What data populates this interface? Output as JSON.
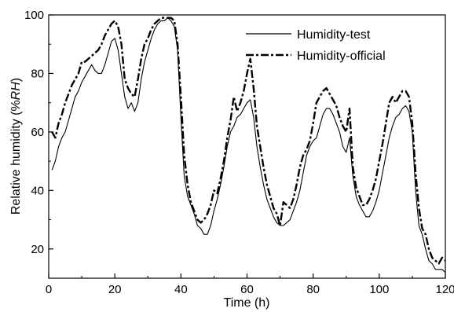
{
  "chart_data": {
    "type": "line",
    "xlabel": "Time (h)",
    "ylabel_prefix": "Relative humidity (%",
    "ylabel_unit": "RH",
    "ylabel_suffix": ")",
    "xlim": [
      0,
      120
    ],
    "ylim": [
      10,
      100
    ],
    "xticks": [
      0,
      20,
      40,
      60,
      80,
      100,
      120
    ],
    "yticks": [
      20,
      40,
      60,
      80,
      100
    ],
    "grid": false,
    "legend_position": "top-right",
    "series": [
      {
        "name": "Humidity-test",
        "style": "solid",
        "color": "#000000",
        "x": [
          1,
          2,
          3,
          4,
          5,
          6,
          7,
          8,
          9,
          10,
          11,
          12,
          13,
          14,
          15,
          16,
          17,
          18,
          19,
          20,
          21,
          22,
          23,
          24,
          25,
          26,
          27,
          28,
          29,
          30,
          31,
          32,
          33,
          34,
          35,
          36,
          37,
          38,
          39,
          40,
          41,
          42,
          43,
          44,
          45,
          46,
          47,
          48,
          49,
          50,
          51,
          52,
          53,
          54,
          55,
          56,
          57,
          58,
          59,
          60,
          61,
          62,
          63,
          64,
          65,
          66,
          67,
          68,
          69,
          70,
          71,
          72,
          73,
          74,
          75,
          76,
          77,
          78,
          79,
          80,
          81,
          82,
          83,
          84,
          85,
          86,
          87,
          88,
          89,
          90,
          91,
          92,
          93,
          94,
          95,
          96,
          97,
          98,
          99,
          100,
          101,
          102,
          103,
          104,
          105,
          106,
          107,
          108,
          109,
          110,
          111,
          112,
          113,
          114,
          115,
          116,
          117,
          118,
          119,
          120
        ],
        "y": [
          47,
          50,
          55,
          58,
          60,
          64,
          68,
          72,
          74,
          77,
          79,
          81,
          83,
          81,
          80,
          80,
          83,
          87,
          91,
          92,
          88,
          80,
          72,
          68,
          70,
          67,
          70,
          78,
          84,
          88,
          92,
          95,
          97,
          98,
          98,
          99,
          98,
          96,
          88,
          65,
          45,
          38,
          35,
          32,
          28,
          27,
          25,
          25,
          28,
          33,
          37,
          42,
          48,
          55,
          60,
          62,
          65,
          66,
          68,
          70,
          71,
          65,
          55,
          48,
          42,
          37,
          34,
          31,
          29,
          28,
          28,
          29,
          30,
          33,
          36,
          40,
          46,
          52,
          55,
          57,
          58,
          62,
          66,
          68,
          68,
          66,
          63,
          60,
          55,
          53,
          58,
          45,
          38,
          35,
          33,
          31,
          31,
          33,
          36,
          40,
          46,
          52,
          58,
          62,
          65,
          66,
          68,
          69,
          67,
          60,
          40,
          28,
          25,
          20,
          16,
          15,
          13,
          13,
          13,
          12
        ]
      },
      {
        "name": "Humidity-official",
        "style": "dash-dot",
        "color": "#000000",
        "x": [
          1,
          2,
          3,
          4,
          5,
          6,
          7,
          8,
          9,
          10,
          11,
          12,
          13,
          14,
          15,
          16,
          17,
          18,
          19,
          20,
          21,
          22,
          23,
          24,
          25,
          26,
          27,
          28,
          29,
          30,
          31,
          32,
          33,
          34,
          35,
          36,
          37,
          38,
          39,
          40,
          41,
          42,
          43,
          44,
          45,
          46,
          47,
          48,
          49,
          50,
          51,
          52,
          53,
          54,
          55,
          56,
          57,
          58,
          59,
          60,
          61,
          62,
          63,
          64,
          65,
          66,
          67,
          68,
          69,
          70,
          71,
          72,
          73,
          74,
          75,
          76,
          77,
          78,
          79,
          80,
          81,
          82,
          83,
          84,
          85,
          86,
          87,
          88,
          89,
          90,
          91,
          92,
          93,
          94,
          95,
          96,
          97,
          98,
          99,
          100,
          101,
          102,
          103,
          104,
          105,
          106,
          107,
          108,
          109,
          110,
          111,
          112,
          113,
          114,
          115,
          116,
          117,
          118,
          119,
          120
        ],
        "y": [
          60,
          58,
          63,
          66,
          70,
          73,
          76,
          78,
          80,
          84,
          84,
          85,
          86,
          87,
          88,
          90,
          93,
          95,
          97,
          98,
          96,
          90,
          78,
          75,
          73,
          72,
          78,
          85,
          90,
          92,
          95,
          97,
          98,
          99,
          99,
          99,
          99,
          98,
          90,
          72,
          52,
          42,
          36,
          33,
          30,
          29,
          30,
          32,
          35,
          40,
          39,
          44,
          50,
          58,
          64,
          72,
          67,
          70,
          74,
          80,
          85,
          75,
          62,
          55,
          48,
          42,
          38,
          34,
          32,
          28,
          36,
          35,
          34,
          37,
          42,
          48,
          52,
          54,
          57,
          63,
          70,
          72,
          74,
          75,
          73,
          71,
          69,
          65,
          62,
          60,
          68,
          48,
          41,
          38,
          35,
          35,
          37,
          40,
          44,
          50,
          56,
          63,
          70,
          72,
          70,
          72,
          74,
          74,
          72,
          63,
          46,
          34,
          27,
          25,
          20,
          17,
          16,
          15,
          17,
          16
        ]
      }
    ]
  }
}
